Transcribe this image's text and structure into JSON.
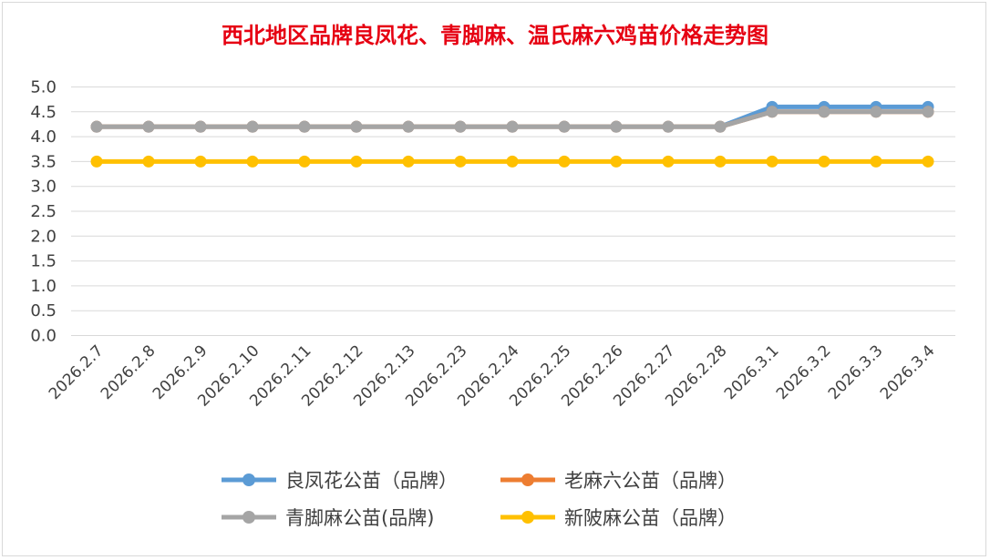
{
  "chart_data": {
    "type": "line",
    "title": "西北地区品牌良凤花、青脚麻、温氏麻六鸡苗价格走势图",
    "xlabel": "",
    "ylabel": "",
    "ylim": [
      0,
      5.0
    ],
    "yticks": [
      "0.0",
      "0.5",
      "1.0",
      "1.5",
      "2.0",
      "2.5",
      "3.0",
      "3.5",
      "4.0",
      "4.5",
      "5.0"
    ],
    "grid": true,
    "legend_position": "bottom",
    "categories": [
      "2026.2.7",
      "2026.2.8",
      "2026.2.9",
      "2026.2.10",
      "2026.2.11",
      "2026.2.12",
      "2026.2.13",
      "2026.2.23",
      "2026.2.24",
      "2026.2.25",
      "2026.2.26",
      "2026.2.27",
      "2026.2.28",
      "2026.3.1",
      "2026.3.2",
      "2026.3.3",
      "2026.3.4"
    ],
    "series": [
      {
        "name": "良凤花公苗（品牌）",
        "color": "#5b9bd5",
        "values": [
          4.2,
          4.2,
          4.2,
          4.2,
          4.2,
          4.2,
          4.2,
          4.2,
          4.2,
          4.2,
          4.2,
          4.2,
          4.2,
          4.6,
          4.6,
          4.6,
          4.6
        ]
      },
      {
        "name": "老麻六公苗（品牌）",
        "color": "#ed7d31",
        "values": [
          4.2,
          4.2,
          4.2,
          4.2,
          4.2,
          4.2,
          4.2,
          4.2,
          4.2,
          4.2,
          4.2,
          4.2,
          4.2,
          4.5,
          4.5,
          4.5,
          4.5
        ]
      },
      {
        "name": "青脚麻公苗(品牌)",
        "color": "#a5a5a5",
        "values": [
          4.2,
          4.2,
          4.2,
          4.2,
          4.2,
          4.2,
          4.2,
          4.2,
          4.2,
          4.2,
          4.2,
          4.2,
          4.2,
          4.5,
          4.5,
          4.5,
          4.5
        ]
      },
      {
        "name": "新陂麻公苗（品牌）",
        "color": "#ffc000",
        "values": [
          3.5,
          3.5,
          3.5,
          3.5,
          3.5,
          3.5,
          3.5,
          3.5,
          3.5,
          3.5,
          3.5,
          3.5,
          3.5,
          3.5,
          3.5,
          3.5,
          3.5
        ]
      }
    ],
    "legend_order": [
      0,
      1,
      2,
      3
    ]
  }
}
